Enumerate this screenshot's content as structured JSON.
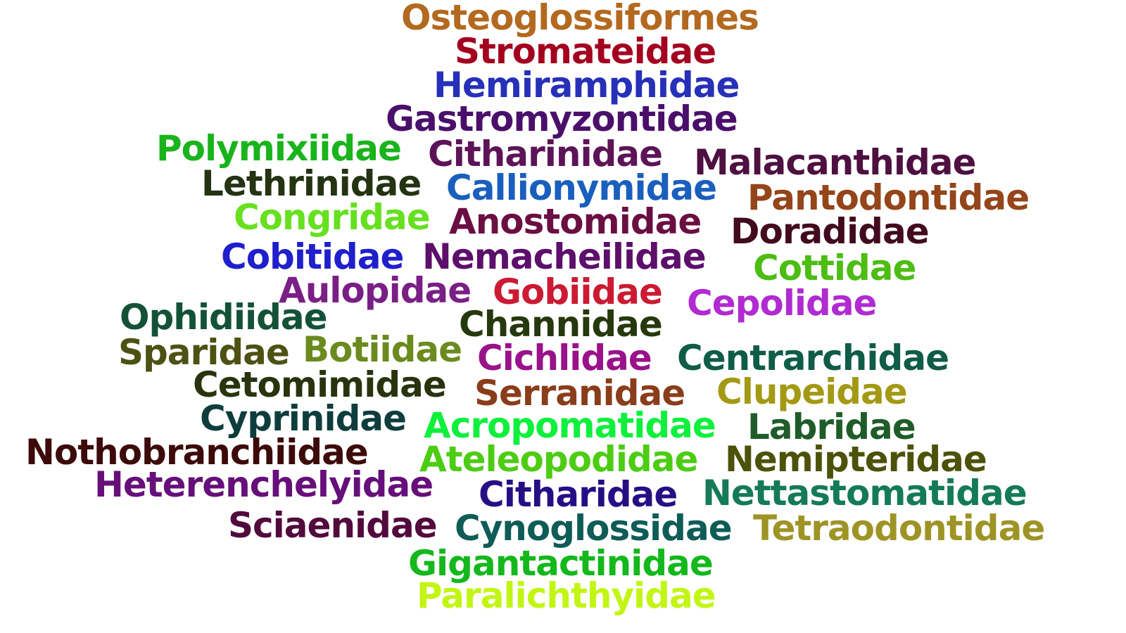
{
  "words": [
    {
      "text": "Osteoglossiformes",
      "color": "#b3691f"
    },
    {
      "text": "Stromateidae",
      "color": "#a3001f"
    },
    {
      "text": "Hemiramphidae",
      "color": "#2630b8"
    },
    {
      "text": "Gastromyzontidae",
      "color": "#4a0f6b"
    },
    {
      "text": "Polymixiidae",
      "color": "#19b31c"
    },
    {
      "text": "Citharinidae",
      "color": "#5c1457"
    },
    {
      "text": "Malacanthidae",
      "color": "#4d1040"
    },
    {
      "text": "Lethrinidae",
      "color": "#243312"
    },
    {
      "text": "Callionymidae",
      "color": "#1a5fbd"
    },
    {
      "text": "Pantodontidae",
      "color": "#94451a"
    },
    {
      "text": "Congridae",
      "color": "#66e01f"
    },
    {
      "text": "Anostomidae",
      "color": "#6b0f42"
    },
    {
      "text": "Doradidae",
      "color": "#420a1f"
    },
    {
      "text": "Cobitidae",
      "color": "#1f1fcc"
    },
    {
      "text": "Nemacheilidae",
      "color": "#5c0f6b"
    },
    {
      "text": "Cottidae",
      "color": "#4dbd14"
    },
    {
      "text": "Aulopidae",
      "color": "#7a1f85"
    },
    {
      "text": "Gobiidae",
      "color": "#cc1a33"
    },
    {
      "text": "Cepolidae",
      "color": "#b02bd1"
    },
    {
      "text": "Ophidiidae",
      "color": "#145238"
    },
    {
      "text": "Channidae",
      "color": "#26380d"
    },
    {
      "text": "Sparidae",
      "color": "#4d5214"
    },
    {
      "text": "Botiidae",
      "color": "#6b8a1f"
    },
    {
      "text": "Cichlidae",
      "color": "#99128a"
    },
    {
      "text": "Centrarchidae",
      "color": "#0f5c47"
    },
    {
      "text": "Cetomimidae",
      "color": "#29330d"
    },
    {
      "text": "Serranidae",
      "color": "#8a3d1a"
    },
    {
      "text": "Clupeidae",
      "color": "#a39914"
    },
    {
      "text": "Cyprinidae",
      "color": "#0f3d3d"
    },
    {
      "text": "Acropomatidae",
      "color": "#0ff03d"
    },
    {
      "text": "Labridae",
      "color": "#1f5c29"
    },
    {
      "text": "Nothobranchiidae",
      "color": "#3d0a0a"
    },
    {
      "text": "Ateleopodidae",
      "color": "#4dcc14"
    },
    {
      "text": "Nemipteridae",
      "color": "#4d520a"
    },
    {
      "text": "Heterenchelyidae",
      "color": "#660f7a"
    },
    {
      "text": "Citharidae",
      "color": "#260f85"
    },
    {
      "text": "Nettastomatidae",
      "color": "#147a57"
    },
    {
      "text": "Sciaenidae",
      "color": "#520a3d"
    },
    {
      "text": "Cynoglossidae",
      "color": "#0f5c57"
    },
    {
      "text": "Tetraodontidae",
      "color": "#9e9426"
    },
    {
      "text": "Gigantactinidae",
      "color": "#14b81c"
    },
    {
      "text": "Paralichthyidae",
      "color": "#c2f514"
    }
  ]
}
